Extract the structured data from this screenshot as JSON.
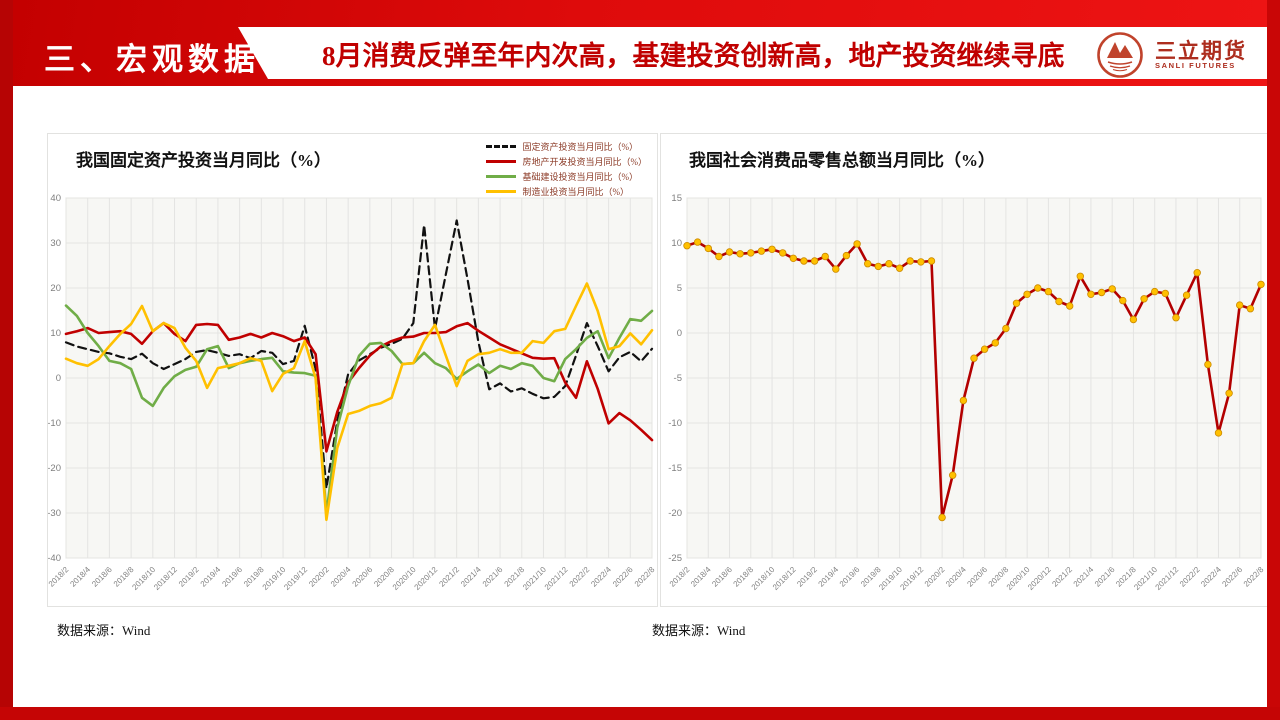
{
  "slide": {
    "section_label": "三、宏观数据",
    "headline": "8月消费反弹至年内次高，基建投资创新高，地产投资继续寻底",
    "logo": {
      "name": "三立期货",
      "name_en": "SANLI FUTURES"
    }
  },
  "colors": {
    "banner_red": "#d40808",
    "headline_red": "#c00000",
    "logo_red": "#c0432c",
    "plot_bg": "#f7f7f4",
    "grid": "#e4e4e2",
    "axis_text": "#7f7f7f",
    "legend_text": "#8b3a26",
    "series_black": "#111111",
    "series_red": "#c00000",
    "series_green": "#70ad47",
    "series_yellow": "#ffc000",
    "retail_line": "#b30000",
    "retail_marker": "#ffc000"
  },
  "chart_data": [
    {
      "type": "line",
      "title": "我国固定资产投资当月同比（%）",
      "source": "数据来源：Wind",
      "ylim": [
        -40,
        40
      ],
      "yticks": [
        40,
        30,
        20,
        10,
        0,
        -10,
        -20,
        -30,
        -40
      ],
      "grid": true,
      "legend_position": "top-right",
      "x": [
        "2018/2",
        "2018/3",
        "2018/4",
        "2018/5",
        "2018/6",
        "2018/7",
        "2018/8",
        "2018/9",
        "2018/10",
        "2018/11",
        "2018/12",
        "2019/1",
        "2019/2",
        "2019/3",
        "2019/4",
        "2019/5",
        "2019/6",
        "2019/7",
        "2019/8",
        "2019/9",
        "2019/10",
        "2019/11",
        "2019/12",
        "2020/1",
        "2020/2",
        "2020/3",
        "2020/4",
        "2020/5",
        "2020/6",
        "2020/7",
        "2020/8",
        "2020/9",
        "2020/10",
        "2020/11",
        "2020/12",
        "2021/1",
        "2021/2",
        "2021/3",
        "2021/4",
        "2021/5",
        "2021/6",
        "2021/7",
        "2021/8",
        "2021/9",
        "2021/10",
        "2021/11",
        "2021/12",
        "2022/1",
        "2022/2",
        "2022/3",
        "2022/4",
        "2022/5",
        "2022/6",
        "2022/7",
        "2022/8"
      ],
      "x_tick_labels": [
        "2018/2",
        "2018/4",
        "2018/6",
        "2018/8",
        "2018/10",
        "2018/12",
        "2019/2",
        "2019/4",
        "2019/6",
        "2019/8",
        "2019/10",
        "2019/12",
        "2020/2",
        "2020/4",
        "2020/6",
        "2020/8",
        "2020/10",
        "2020/12",
        "2021/2",
        "2021/4",
        "2021/6",
        "2021/8",
        "2021/10",
        "2021/12",
        "2022/2",
        "2022/4",
        "2022/6",
        "2022/8"
      ],
      "series": [
        {
          "name": "固定资产投资当月同比（%）",
          "color": "#111111",
          "style": "dashed",
          "values": [
            7.9,
            7.0,
            6.4,
            5.8,
            5.5,
            4.7,
            4.2,
            5.4,
            3.3,
            2.0,
            3.1,
            4.2,
            5.8,
            6.2,
            5.6,
            4.9,
            5.3,
            4.4,
            6.0,
            5.6,
            3.1,
            3.8,
            11.6,
            2.0,
            -24.5,
            -9.5,
            0.8,
            3.9,
            5.3,
            6.7,
            7.6,
            8.7,
            12.2,
            34.0,
            11.0,
            23.0,
            35.0,
            22.0,
            8.0,
            -2.5,
            -1.2,
            -3.0,
            -2.3,
            -3.5,
            -4.5,
            -4.2,
            -1.8,
            5.0,
            12.2,
            7.1,
            1.5,
            4.6,
            5.8,
            3.7,
            6.5
          ]
        },
        {
          "name": "房地产开发投资当月同比（%）",
          "color": "#c00000",
          "style": "solid",
          "values": [
            9.8,
            10.4,
            11.1,
            10.0,
            10.2,
            10.4,
            9.8,
            7.6,
            10.4,
            12.2,
            9.8,
            8.2,
            11.8,
            12.0,
            11.8,
            8.5,
            9.0,
            9.8,
            9.0,
            10.0,
            9.3,
            8.2,
            9.0,
            5.3,
            -16.3,
            -7.5,
            -1.0,
            2.2,
            5.0,
            7.0,
            8.2,
            9.0,
            9.2,
            10.0,
            10.0,
            10.2,
            11.5,
            12.2,
            10.5,
            9.0,
            7.5,
            6.5,
            5.5,
            4.5,
            4.3,
            4.4,
            -1.0,
            -4.4,
            3.7,
            -2.4,
            -10.1,
            -7.8,
            -9.4,
            -11.5,
            -13.8
          ]
        },
        {
          "name": "基础建设投资当月同比（%）",
          "color": "#70ad47",
          "style": "solid",
          "values": [
            16.1,
            13.8,
            10.0,
            7.1,
            3.8,
            3.3,
            2.0,
            -4.4,
            -6.2,
            -2.2,
            0.4,
            1.8,
            2.5,
            6.4,
            7.1,
            2.2,
            3.3,
            3.8,
            4.2,
            4.5,
            1.5,
            1.2,
            1.1,
            0.5,
            -30.2,
            -11.0,
            -1.8,
            4.9,
            7.6,
            7.8,
            6.0,
            3.1,
            3.3,
            5.6,
            3.3,
            2.2,
            -0.2,
            1.5,
            3.0,
            1.1,
            2.7,
            2.0,
            3.3,
            2.7,
            0.0,
            -0.7,
            4.2,
            6.4,
            8.9,
            10.4,
            4.4,
            8.9,
            13.1,
            12.7,
            14.9
          ]
        },
        {
          "name": "制造业投资当月同比（%）",
          "color": "#ffc000",
          "style": "solid",
          "values": [
            4.3,
            3.3,
            2.7,
            4.2,
            7.1,
            9.8,
            12.0,
            16.0,
            10.4,
            12.2,
            11.1,
            6.7,
            3.8,
            -2.2,
            2.2,
            2.7,
            3.3,
            4.4,
            3.8,
            -2.9,
            0.9,
            2.2,
            8.2,
            0.0,
            -31.5,
            -15.5,
            -8.0,
            -7.3,
            -6.2,
            -5.6,
            -4.4,
            3.1,
            3.3,
            8.2,
            11.8,
            5.0,
            -1.8,
            3.8,
            5.3,
            5.6,
            6.4,
            5.6,
            5.6,
            8.2,
            7.8,
            10.4,
            10.9,
            16.0,
            21.0,
            14.9,
            6.4,
            7.1,
            9.9,
            7.5,
            10.6
          ]
        }
      ]
    },
    {
      "type": "line",
      "title": "我国社会消费品零售总额当月同比（%）",
      "source": "数据来源：Wind",
      "ylim": [
        -25,
        15
      ],
      "yticks": [
        15,
        10,
        5,
        0,
        -5,
        -10,
        -15,
        -20,
        -25
      ],
      "grid": true,
      "legend_position": "none",
      "x": [
        "2018/2",
        "2018/3",
        "2018/4",
        "2018/5",
        "2018/6",
        "2018/7",
        "2018/8",
        "2018/9",
        "2018/10",
        "2018/11",
        "2018/12",
        "2019/1",
        "2019/2",
        "2019/3",
        "2019/4",
        "2019/5",
        "2019/6",
        "2019/7",
        "2019/8",
        "2019/9",
        "2019/10",
        "2019/11",
        "2019/12",
        "2020/1",
        "2020/2",
        "2020/3",
        "2020/4",
        "2020/5",
        "2020/6",
        "2020/7",
        "2020/8",
        "2020/9",
        "2020/10",
        "2020/11",
        "2020/12",
        "2021/1",
        "2021/2",
        "2021/3",
        "2021/4",
        "2021/5",
        "2021/6",
        "2021/7",
        "2021/8",
        "2021/9",
        "2021/10",
        "2021/11",
        "2021/12",
        "2022/1",
        "2022/2",
        "2022/3",
        "2022/4",
        "2022/5",
        "2022/6",
        "2022/7",
        "2022/8"
      ],
      "x_tick_labels": [
        "2018/2",
        "2018/4",
        "2018/6",
        "2018/8",
        "2018/10",
        "2018/12",
        "2019/2",
        "2019/4",
        "2019/6",
        "2019/8",
        "2019/10",
        "2019/12",
        "2020/2",
        "2020/4",
        "2020/6",
        "2020/8",
        "2020/10",
        "2020/12",
        "2021/2",
        "2021/4",
        "2021/6",
        "2021/8",
        "2021/10",
        "2021/12",
        "2022/2",
        "2022/4",
        "2022/6",
        "2022/8"
      ],
      "series": [
        {
          "name": "社会消费品零售总额当月同比（%）",
          "color": "#b30000",
          "style": "solid",
          "marker": {
            "fill": "#ffc000",
            "stroke": "#cc8a00",
            "r": 3.3
          },
          "values": [
            9.7,
            10.1,
            9.4,
            8.5,
            9.0,
            8.8,
            8.9,
            9.1,
            9.3,
            8.9,
            8.3,
            8.0,
            8.0,
            8.5,
            7.1,
            8.6,
            9.9,
            7.7,
            7.4,
            7.7,
            7.2,
            8.0,
            7.9,
            8.0,
            -20.5,
            -15.8,
            -7.5,
            -2.8,
            -1.8,
            -1.1,
            0.5,
            3.3,
            4.3,
            5.0,
            4.6,
            3.5,
            3.0,
            6.3,
            4.3,
            4.5,
            4.9,
            3.6,
            1.5,
            3.8,
            4.6,
            4.4,
            1.7,
            4.2,
            6.7,
            -3.5,
            -11.1,
            -6.7,
            3.1,
            2.7,
            5.4
          ]
        }
      ]
    }
  ]
}
